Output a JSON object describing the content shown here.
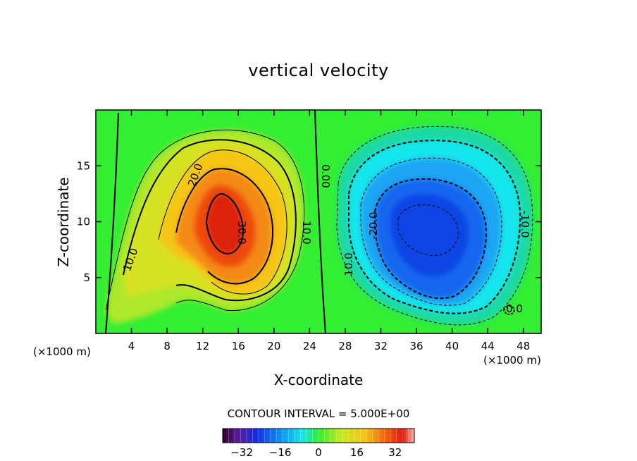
{
  "chart_data": {
    "type": "heatmap",
    "title": "vertical velocity",
    "xlabel": "X-coordinate",
    "ylabel": "Z-coordinate",
    "x_unit_label_left": "(×1000 m)",
    "x_unit_label_right": "(×1000 m)",
    "xlim": [
      0,
      50
    ],
    "ylim": [
      0,
      20
    ],
    "x_ticks": [
      4,
      8,
      12,
      16,
      20,
      24,
      28,
      32,
      36,
      40,
      44,
      48
    ],
    "y_ticks": [
      5,
      10,
      15
    ],
    "contour_interval_text": "CONTOUR INTERVAL = 5.000E+00",
    "contour_interval": 5,
    "contour_labels": [
      "20.0",
      "30.0",
      "10.0",
      "10.0",
      "0.00",
      "-20.0",
      "10.0",
      "-10.0",
      "0.0"
    ],
    "features": [
      {
        "kind": "updraft",
        "center": [
          14.5,
          10.0
        ],
        "peak": 34
      },
      {
        "kind": "downdraft",
        "center": [
          37.5,
          9.8
        ],
        "peak": -30
      }
    ],
    "colorbar": {
      "range": [
        -40,
        40
      ],
      "tick_values": [
        -32,
        -16,
        0,
        16,
        32
      ],
      "tick_labels": [
        "−32",
        "−16",
        "0",
        "16",
        "32"
      ]
    },
    "grid": false,
    "legend": "none"
  }
}
